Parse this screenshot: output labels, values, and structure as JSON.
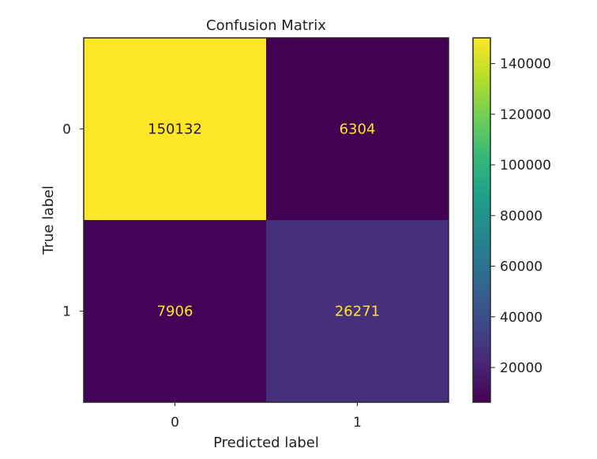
{
  "chart_data": {
    "type": "heatmap",
    "title": "Confusion Matrix",
    "xlabel": "Predicted label",
    "ylabel": "True label",
    "x_categories": [
      "0",
      "1"
    ],
    "y_categories": [
      "0",
      "1"
    ],
    "matrix": [
      [
        150132,
        6304
      ],
      [
        7906,
        26271
      ]
    ],
    "value_labels": [
      [
        "150132",
        "6304"
      ],
      [
        "7906",
        "26271"
      ]
    ],
    "colormap": "viridis",
    "colorbar": {
      "range": [
        6304,
        150132
      ],
      "ticks": [
        20000,
        40000,
        60000,
        80000,
        100000,
        120000,
        140000
      ],
      "tick_labels": [
        "20000",
        "40000",
        "60000",
        "80000",
        "100000",
        "120000",
        "140000"
      ]
    },
    "grid": false,
    "colors": {
      "low_cell": "#440154",
      "mid_low_cell": "#472d7b",
      "high_cell": "#fde725",
      "text_on_dark": "#fde725",
      "text_on_light": "#2b1a3a"
    }
  }
}
